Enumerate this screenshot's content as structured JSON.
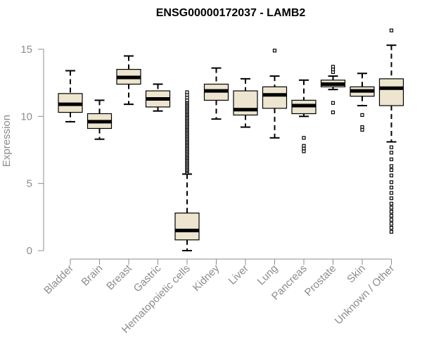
{
  "chart_data": {
    "type": "boxplot",
    "title": "ENSG00000172037 - LAMB2",
    "xlabel": "",
    "ylabel": "Expression",
    "ylim": [
      0,
      16.5
    ],
    "yticks": [
      0,
      5,
      10,
      15
    ],
    "grid": false,
    "legend": "none",
    "colors": {
      "box_fill": "#ede5cf",
      "box_edge": "#000000",
      "median": "#000000",
      "axis": "#8c8c8c"
    },
    "categories": [
      "Bladder",
      "Brain",
      "Breast",
      "Gastric",
      "Hematopoietic cells",
      "Kidney",
      "Liver",
      "Lung",
      "Pancreas",
      "Prostate",
      "Skin",
      "Unknown / Other"
    ],
    "boxes": [
      {
        "category": "Bladder",
        "whisker_low": 9.6,
        "q1": 10.3,
        "median": 10.9,
        "q3": 11.7,
        "whisker_high": 13.4,
        "outliers": []
      },
      {
        "category": "Brain",
        "whisker_low": 8.3,
        "q1": 9.1,
        "median": 9.6,
        "q3": 10.2,
        "whisker_high": 11.2,
        "outliers": []
      },
      {
        "category": "Breast",
        "whisker_low": 10.9,
        "q1": 12.4,
        "median": 12.9,
        "q3": 13.5,
        "whisker_high": 14.5,
        "outliers": []
      },
      {
        "category": "Gastric",
        "whisker_low": 10.4,
        "q1": 10.7,
        "median": 11.3,
        "q3": 11.9,
        "whisker_high": 12.4,
        "outliers": []
      },
      {
        "category": "Hematopoietic cells",
        "whisker_low": 0.0,
        "q1": 0.8,
        "median": 1.5,
        "q3": 2.8,
        "whisker_high": 5.7,
        "outliers": [
          5.8,
          5.9,
          6.0,
          6.1,
          6.2,
          6.3,
          6.4,
          6.5,
          6.6,
          6.7,
          6.8,
          6.9,
          7.0,
          7.1,
          7.2,
          7.3,
          7.4,
          7.5,
          7.6,
          7.7,
          7.8,
          7.9,
          8.0,
          8.1,
          8.2,
          8.3,
          8.4,
          8.5,
          8.6,
          8.7,
          8.8,
          8.9,
          9.0,
          9.1,
          9.2,
          9.3,
          9.4,
          9.5,
          9.6,
          9.7,
          9.8,
          9.9,
          10.0,
          10.1,
          10.2,
          10.3,
          10.4,
          10.5,
          10.6,
          10.7,
          10.8,
          10.9,
          11.0,
          11.1,
          11.2,
          11.4,
          11.6,
          11.8
        ]
      },
      {
        "category": "Kidney",
        "whisker_low": 9.8,
        "q1": 11.2,
        "median": 11.9,
        "q3": 12.4,
        "whisker_high": 13.6,
        "outliers": []
      },
      {
        "category": "Liver",
        "whisker_low": 9.2,
        "q1": 10.1,
        "median": 10.5,
        "q3": 11.9,
        "whisker_high": 12.8,
        "outliers": []
      },
      {
        "category": "Lung",
        "whisker_low": 8.4,
        "q1": 10.6,
        "median": 11.6,
        "q3": 12.2,
        "whisker_high": 13.0,
        "outliers": [
          14.9
        ]
      },
      {
        "category": "Pancreas",
        "whisker_low": 10.0,
        "q1": 10.2,
        "median": 10.8,
        "q3": 11.2,
        "whisker_high": 12.7,
        "outliers": [
          8.4,
          7.8,
          7.6,
          7.4
        ]
      },
      {
        "category": "Prostate",
        "whisker_low": 12.0,
        "q1": 12.2,
        "median": 12.4,
        "q3": 12.7,
        "whisker_high": 13.0,
        "outliers": [
          13.3,
          13.5,
          13.7,
          11.0,
          10.3
        ]
      },
      {
        "category": "Skin",
        "whisker_low": 10.8,
        "q1": 11.5,
        "median": 11.9,
        "q3": 12.2,
        "whisker_high": 13.2,
        "outliers": [
          10.1,
          9.2,
          9.0
        ]
      },
      {
        "category": "Unknown / Other",
        "whisker_low": 8.1,
        "q1": 10.8,
        "median": 12.1,
        "q3": 12.8,
        "whisker_high": 15.3,
        "outliers": [
          16.4,
          7.7,
          7.3,
          6.8,
          6.3,
          6.0,
          5.6,
          5.1,
          4.7,
          4.3,
          3.9,
          3.5,
          3.2,
          2.9,
          2.6,
          2.3,
          2.0,
          1.7,
          1.4
        ]
      }
    ]
  }
}
